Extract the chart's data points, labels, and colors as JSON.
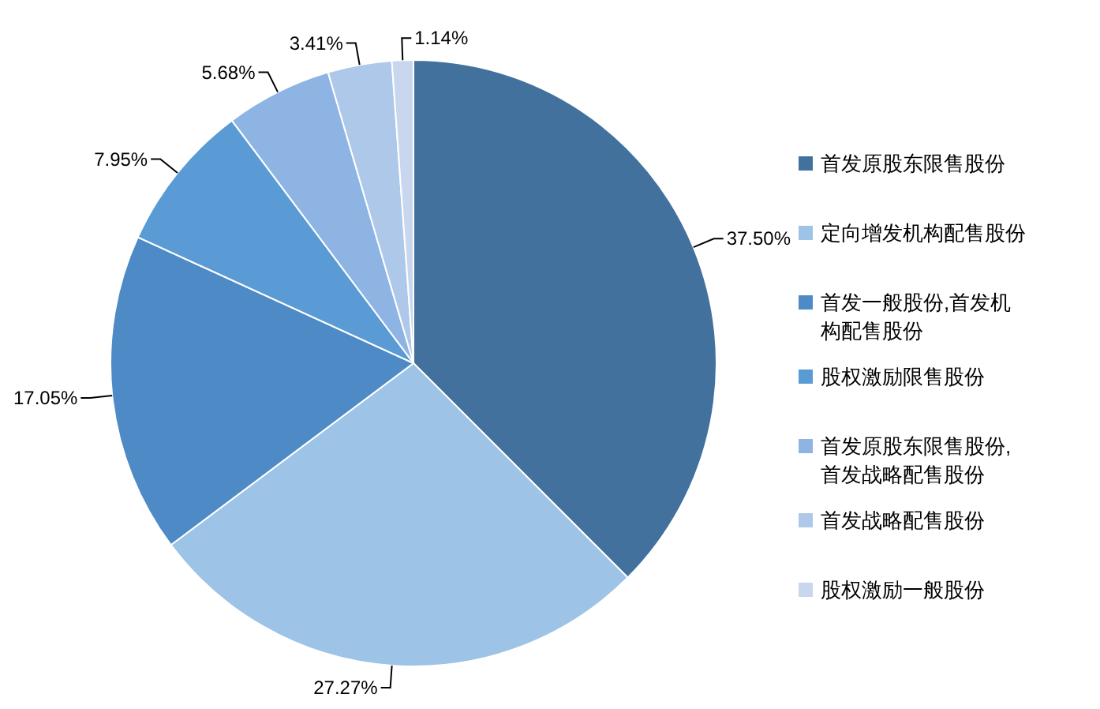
{
  "chart_data": {
    "type": "pie",
    "categories": [
      "首发原股东限售股份",
      "定向增发机构配售股份",
      "首发一般股份,首发机构配售股份",
      "股权激励限售股份",
      "首发原股东限售股份,首发战略配售股份",
      "首发战略配售股份",
      "股权激励一般股份"
    ],
    "values": [
      37.5,
      27.27,
      17.05,
      7.95,
      5.68,
      3.41,
      1.14
    ],
    "colors": [
      "#41719c",
      "#9dc3e6",
      "#4e8ac6",
      "#5b9bd5",
      "#8eb4e3",
      "#adc8e9",
      "#c9d7ee"
    ],
    "value_labels": [
      "37.50%",
      "27.27%",
      "17.05%",
      "7.95%",
      "5.68%",
      "3.41%",
      "1.14%"
    ],
    "legend": "right"
  }
}
